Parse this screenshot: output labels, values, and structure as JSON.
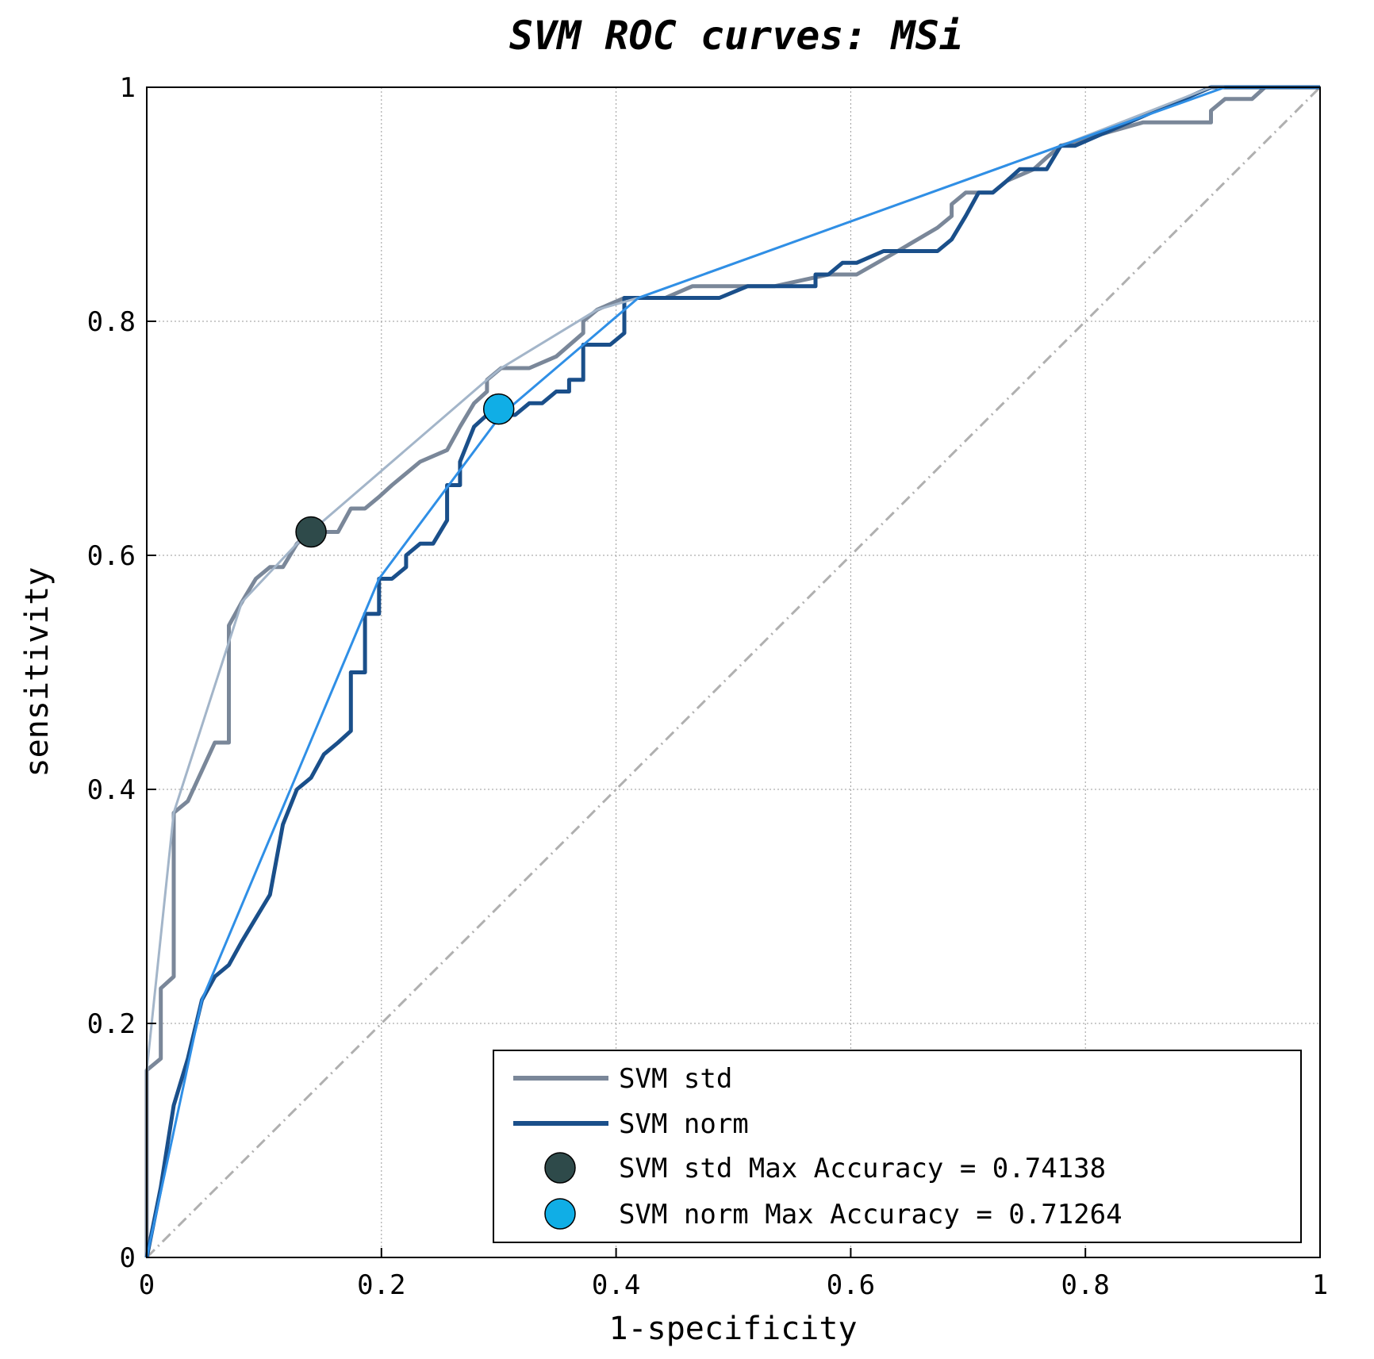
{
  "chart_data": {
    "type": "line",
    "title": "SVM ROC curves: MSi",
    "xlabel": "1-specificity",
    "ylabel": "sensitivity",
    "xlim": [
      0,
      1
    ],
    "ylim": [
      0,
      1
    ],
    "xticks": [
      "0",
      "0.2",
      "0.4",
      "0.6",
      "0.8",
      "1"
    ],
    "yticks": [
      "0",
      "0.2",
      "0.4",
      "0.6",
      "0.8",
      "1"
    ],
    "grid": true,
    "legend_position": "bottom-right",
    "colors": {
      "std": "#7a8799",
      "std_hull": "#a3b5c9",
      "norm": "#1a4f8a",
      "norm_hull": "#2f8fe6",
      "std_point": "#2e4a4a",
      "norm_point": "#10aee6",
      "diagonal": "#b0b0b0"
    },
    "series": [
      {
        "name": "SVM std",
        "x": [
          0,
          0,
          0.012,
          0.012,
          0.023,
          0.023,
          0.035,
          0.058,
          0.07,
          0.07,
          0.081,
          0.093,
          0.105,
          0.116,
          0.128,
          0.14,
          0.151,
          0.163,
          0.174,
          0.186,
          0.198,
          0.209,
          0.233,
          0.256,
          0.267,
          0.279,
          0.29,
          0.29,
          0.302,
          0.326,
          0.349,
          0.372,
          0.372,
          0.384,
          0.407,
          0.442,
          0.465,
          0.488,
          0.535,
          0.581,
          0.605,
          0.64,
          0.674,
          0.686,
          0.686,
          0.698,
          0.721,
          0.733,
          0.756,
          0.767,
          0.779,
          0.814,
          0.849,
          0.884,
          0.907,
          0.907,
          0.919,
          0.93,
          0.942,
          0.953,
          1
        ],
        "y": [
          0,
          0.16,
          0.17,
          0.23,
          0.24,
          0.38,
          0.39,
          0.44,
          0.44,
          0.54,
          0.56,
          0.58,
          0.59,
          0.59,
          0.61,
          0.62,
          0.62,
          0.62,
          0.64,
          0.64,
          0.65,
          0.66,
          0.68,
          0.69,
          0.71,
          0.73,
          0.74,
          0.75,
          0.76,
          0.76,
          0.77,
          0.79,
          0.8,
          0.81,
          0.82,
          0.82,
          0.83,
          0.83,
          0.83,
          0.84,
          0.84,
          0.86,
          0.88,
          0.89,
          0.9,
          0.91,
          0.91,
          0.92,
          0.93,
          0.94,
          0.95,
          0.96,
          0.97,
          0.97,
          0.97,
          0.98,
          0.99,
          0.99,
          0.99,
          1,
          1
        ]
      },
      {
        "name": "SVM norm",
        "x": [
          0,
          0.012,
          0.023,
          0.035,
          0.047,
          0.058,
          0.07,
          0.081,
          0.093,
          0.105,
          0.116,
          0.128,
          0.14,
          0.151,
          0.163,
          0.174,
          0.174,
          0.186,
          0.186,
          0.198,
          0.198,
          0.209,
          0.221,
          0.221,
          0.233,
          0.244,
          0.256,
          0.256,
          0.267,
          0.267,
          0.279,
          0.29,
          0.302,
          0.314,
          0.326,
          0.337,
          0.349,
          0.36,
          0.36,
          0.372,
          0.372,
          0.384,
          0.395,
          0.407,
          0.407,
          0.419,
          0.442,
          0.465,
          0.488,
          0.512,
          0.535,
          0.558,
          0.57,
          0.57,
          0.581,
          0.593,
          0.605,
          0.628,
          0.64,
          0.663,
          0.674,
          0.686,
          0.698,
          0.709,
          0.721,
          0.733,
          0.744,
          0.767,
          0.779,
          0.791,
          0.814,
          0.837,
          0.86,
          0.884,
          0.907,
          0.919,
          1
        ],
        "y": [
          0,
          0.06,
          0.13,
          0.17,
          0.22,
          0.24,
          0.25,
          0.27,
          0.29,
          0.31,
          0.37,
          0.4,
          0.41,
          0.43,
          0.44,
          0.45,
          0.5,
          0.5,
          0.55,
          0.55,
          0.58,
          0.58,
          0.59,
          0.6,
          0.61,
          0.61,
          0.63,
          0.66,
          0.66,
          0.68,
          0.71,
          0.72,
          0.72,
          0.72,
          0.73,
          0.73,
          0.74,
          0.74,
          0.75,
          0.75,
          0.78,
          0.78,
          0.78,
          0.79,
          0.82,
          0.82,
          0.82,
          0.82,
          0.82,
          0.83,
          0.83,
          0.83,
          0.83,
          0.84,
          0.84,
          0.85,
          0.85,
          0.86,
          0.86,
          0.86,
          0.86,
          0.87,
          0.89,
          0.91,
          0.91,
          0.92,
          0.93,
          0.93,
          0.95,
          0.95,
          0.96,
          0.97,
          0.98,
          0.99,
          1,
          1,
          1
        ]
      }
    ],
    "hulls": [
      {
        "x": [
          0,
          0.023,
          0.081,
          0.128,
          0.29,
          0.302,
          0.384,
          0.419,
          0.779,
          0.907,
          1
        ],
        "y": [
          0.16,
          0.38,
          0.56,
          0.61,
          0.75,
          0.76,
          0.81,
          0.82,
          0.95,
          1,
          1
        ]
      },
      {
        "x": [
          0,
          0.047,
          0.198,
          0.302,
          0.419,
          0.779,
          0.919,
          1
        ],
        "y": [
          0,
          0.22,
          0.58,
          0.72,
          0.82,
          0.95,
          1,
          1
        ]
      }
    ],
    "diagonal": {
      "x": [
        0,
        1
      ],
      "y": [
        0,
        1
      ]
    },
    "points": [
      {
        "name": "SVM std Max Accuracy = 0.74138",
        "x": 0.14,
        "y": 0.62
      },
      {
        "name": "SVM norm Max Accuracy = 0.71264",
        "x": 0.3,
        "y": 0.725
      }
    ]
  }
}
